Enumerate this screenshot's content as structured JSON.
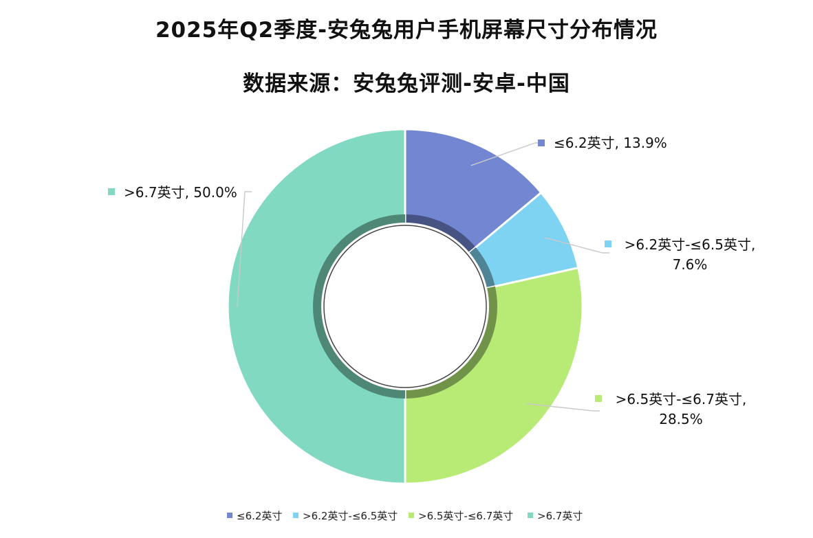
{
  "title": "2025年Q2季度-安兔兔用户手机屏幕尺寸分布情况",
  "subtitle": "数据来源：安兔兔评测-安卓-中国",
  "chart_data": {
    "type": "pie",
    "style": "donut",
    "title": "2025年Q2季度-安兔兔用户手机屏幕尺寸分布情况",
    "subtitle": "数据来源：安兔兔评测-安卓-中国",
    "categories": [
      "≤6.2英寸",
      ">6.2英寸-≤6.5英寸",
      ">6.5英寸-≤6.7英寸",
      ">6.7英寸"
    ],
    "values": [
      13.9,
      7.6,
      28.5,
      50.0
    ],
    "unit": "%",
    "colors": [
      "#7386d2",
      "#7fd3f2",
      "#b7eb75",
      "#80d9c0"
    ],
    "data_labels": [
      [
        "≤6.2英寸, 13.9%"
      ],
      [
        ">6.2英寸-≤6.5英寸,",
        "7.6%"
      ],
      [
        ">6.5英寸-≤6.7英寸,",
        "28.5%"
      ],
      [
        ">6.7英寸, 50.0%"
      ]
    ],
    "legend_position": "bottom"
  }
}
